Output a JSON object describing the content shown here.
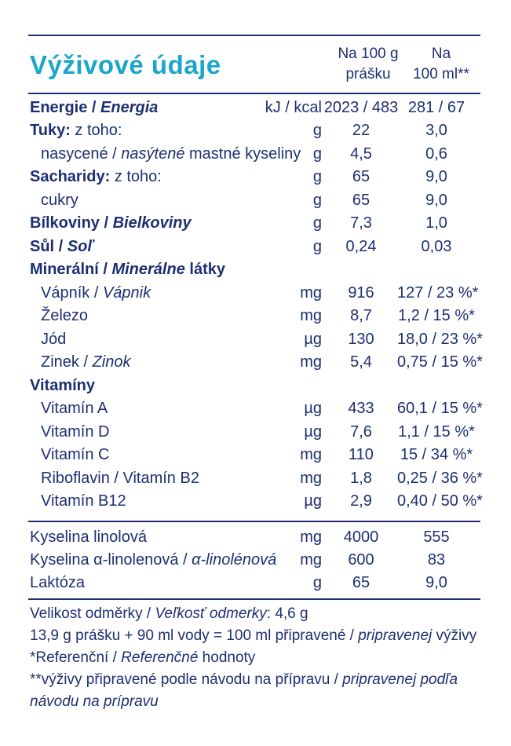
{
  "title": "Výživové údaje",
  "header": {
    "col1_line1": "Na 100 g",
    "col1_line2": "prášku",
    "col2_line1": "Na",
    "col2_line2": "100 ml**"
  },
  "energy": {
    "label_cz": "Energie",
    "sep": " / ",
    "label_sk": "Energia",
    "unit": "kJ / kcal",
    "v1": "2023 / 483",
    "v2": "281 / 67"
  },
  "rows": [
    {
      "parts": [
        [
          "b",
          "Tuky:"
        ],
        [
          "n",
          " z toho:"
        ]
      ],
      "unit": "g",
      "v1": "22",
      "v2": "3,0",
      "indent": 0
    },
    {
      "parts": [
        [
          "n",
          "nasycené / "
        ],
        [
          "i",
          "nasýtené"
        ],
        [
          "n",
          " mastné kyseliny"
        ]
      ],
      "unit": "g",
      "v1": "4,5",
      "v2": "0,6",
      "indent": 1
    },
    {
      "parts": [
        [
          "b",
          "Sacharidy:"
        ],
        [
          "n",
          " z toho:"
        ]
      ],
      "unit": "g",
      "v1": "65",
      "v2": "9,0",
      "indent": 0
    },
    {
      "parts": [
        [
          "n",
          "cukry"
        ]
      ],
      "unit": "g",
      "v1": "65",
      "v2": "9,0",
      "indent": 1
    },
    {
      "parts": [
        [
          "b",
          "Bílkoviny / "
        ],
        [
          "bi",
          "Bielkoviny"
        ]
      ],
      "unit": "g",
      "v1": "7,3",
      "v2": "1,0",
      "indent": 0
    },
    {
      "parts": [
        [
          "b",
          "Sůl / "
        ],
        [
          "bi",
          "Soľ"
        ]
      ],
      "unit": "g",
      "v1": "0,24",
      "v2": "0,03",
      "indent": 0
    },
    {
      "parts": [
        [
          "b",
          "Minerální / "
        ],
        [
          "bi",
          "Minerálne"
        ],
        [
          "b",
          " látky"
        ]
      ],
      "unit": "",
      "v1": "",
      "v2": "",
      "indent": 0
    },
    {
      "parts": [
        [
          "n",
          "Vápník / "
        ],
        [
          "i",
          "Vápnik"
        ]
      ],
      "unit": "mg",
      "v1": "916",
      "v2": "127 / 23 %*",
      "indent": 2
    },
    {
      "parts": [
        [
          "n",
          "Železo"
        ]
      ],
      "unit": "mg",
      "v1": "8,7",
      "v2": "1,2 / 15 %*",
      "indent": 2
    },
    {
      "parts": [
        [
          "n",
          "Jód"
        ]
      ],
      "unit": "µg",
      "v1": "130",
      "v2": "18,0 / 23 %*",
      "indent": 2
    },
    {
      "parts": [
        [
          "n",
          "Zinek / "
        ],
        [
          "i",
          "Zinok"
        ]
      ],
      "unit": "mg",
      "v1": "5,4",
      "v2": "0,75 / 15 %*",
      "indent": 2
    },
    {
      "parts": [
        [
          "b",
          "Vitamíny"
        ]
      ],
      "unit": "",
      "v1": "",
      "v2": "",
      "indent": 0
    },
    {
      "parts": [
        [
          "n",
          "Vitamín A"
        ]
      ],
      "unit": "µg",
      "v1": "433",
      "v2": "60,1 / 15 %*",
      "indent": 2
    },
    {
      "parts": [
        [
          "n",
          "Vitamín D"
        ]
      ],
      "unit": "µg",
      "v1": "7,6",
      "v2": "1,1 / 15 %*",
      "indent": 2
    },
    {
      "parts": [
        [
          "n",
          "Vitamín C"
        ]
      ],
      "unit": "mg",
      "v1": "110",
      "v2": "15 / 34 %*",
      "indent": 2
    },
    {
      "parts": [
        [
          "n",
          "Riboflavin / Vitamín B2"
        ]
      ],
      "unit": "mg",
      "v1": "1,8",
      "v2": "0,25 / 36 %*",
      "indent": 2
    },
    {
      "parts": [
        [
          "n",
          "Vitamín B12"
        ]
      ],
      "unit": "µg",
      "v1": "2,9",
      "v2": "0,40 / 50 %*",
      "indent": 2
    }
  ],
  "rows2": [
    {
      "parts": [
        [
          "n",
          "Kyselina linolová"
        ]
      ],
      "unit": "mg",
      "v1": "4000",
      "v2": "555"
    },
    {
      "parts": [
        [
          "n",
          "Kyselina α-linolenová / "
        ],
        [
          "i",
          "α-linolénová"
        ]
      ],
      "unit": "mg",
      "v1": "600",
      "v2": "83"
    },
    {
      "parts": [
        [
          "n",
          "Laktóza"
        ]
      ],
      "unit": "g",
      "v1": "65",
      "v2": "9,0"
    }
  ],
  "footer": [
    [
      [
        "n",
        "Velikost odměrky / "
      ],
      [
        "i",
        "Veľkosť odmerky"
      ],
      [
        "n",
        ": 4,6 g"
      ]
    ],
    [
      [
        "n",
        "13,9 g prášku + 90 ml vody = 100 ml připravené / "
      ],
      [
        "i",
        "pripravenej"
      ],
      [
        "n",
        " výživy"
      ]
    ],
    [
      [
        "n",
        "*Referenční / "
      ],
      [
        "i",
        "Referenčné"
      ],
      [
        "n",
        " hodnoty"
      ]
    ],
    [
      [
        "n",
        "**výživy připravené podle návodu na přípravu / "
      ],
      [
        "i",
        "pripravenej podľa"
      ]
    ],
    [
      [
        "i",
        "návodu na prípravu"
      ]
    ]
  ],
  "colors": {
    "text": "#1d2f72",
    "title": "#1aa6c8"
  }
}
